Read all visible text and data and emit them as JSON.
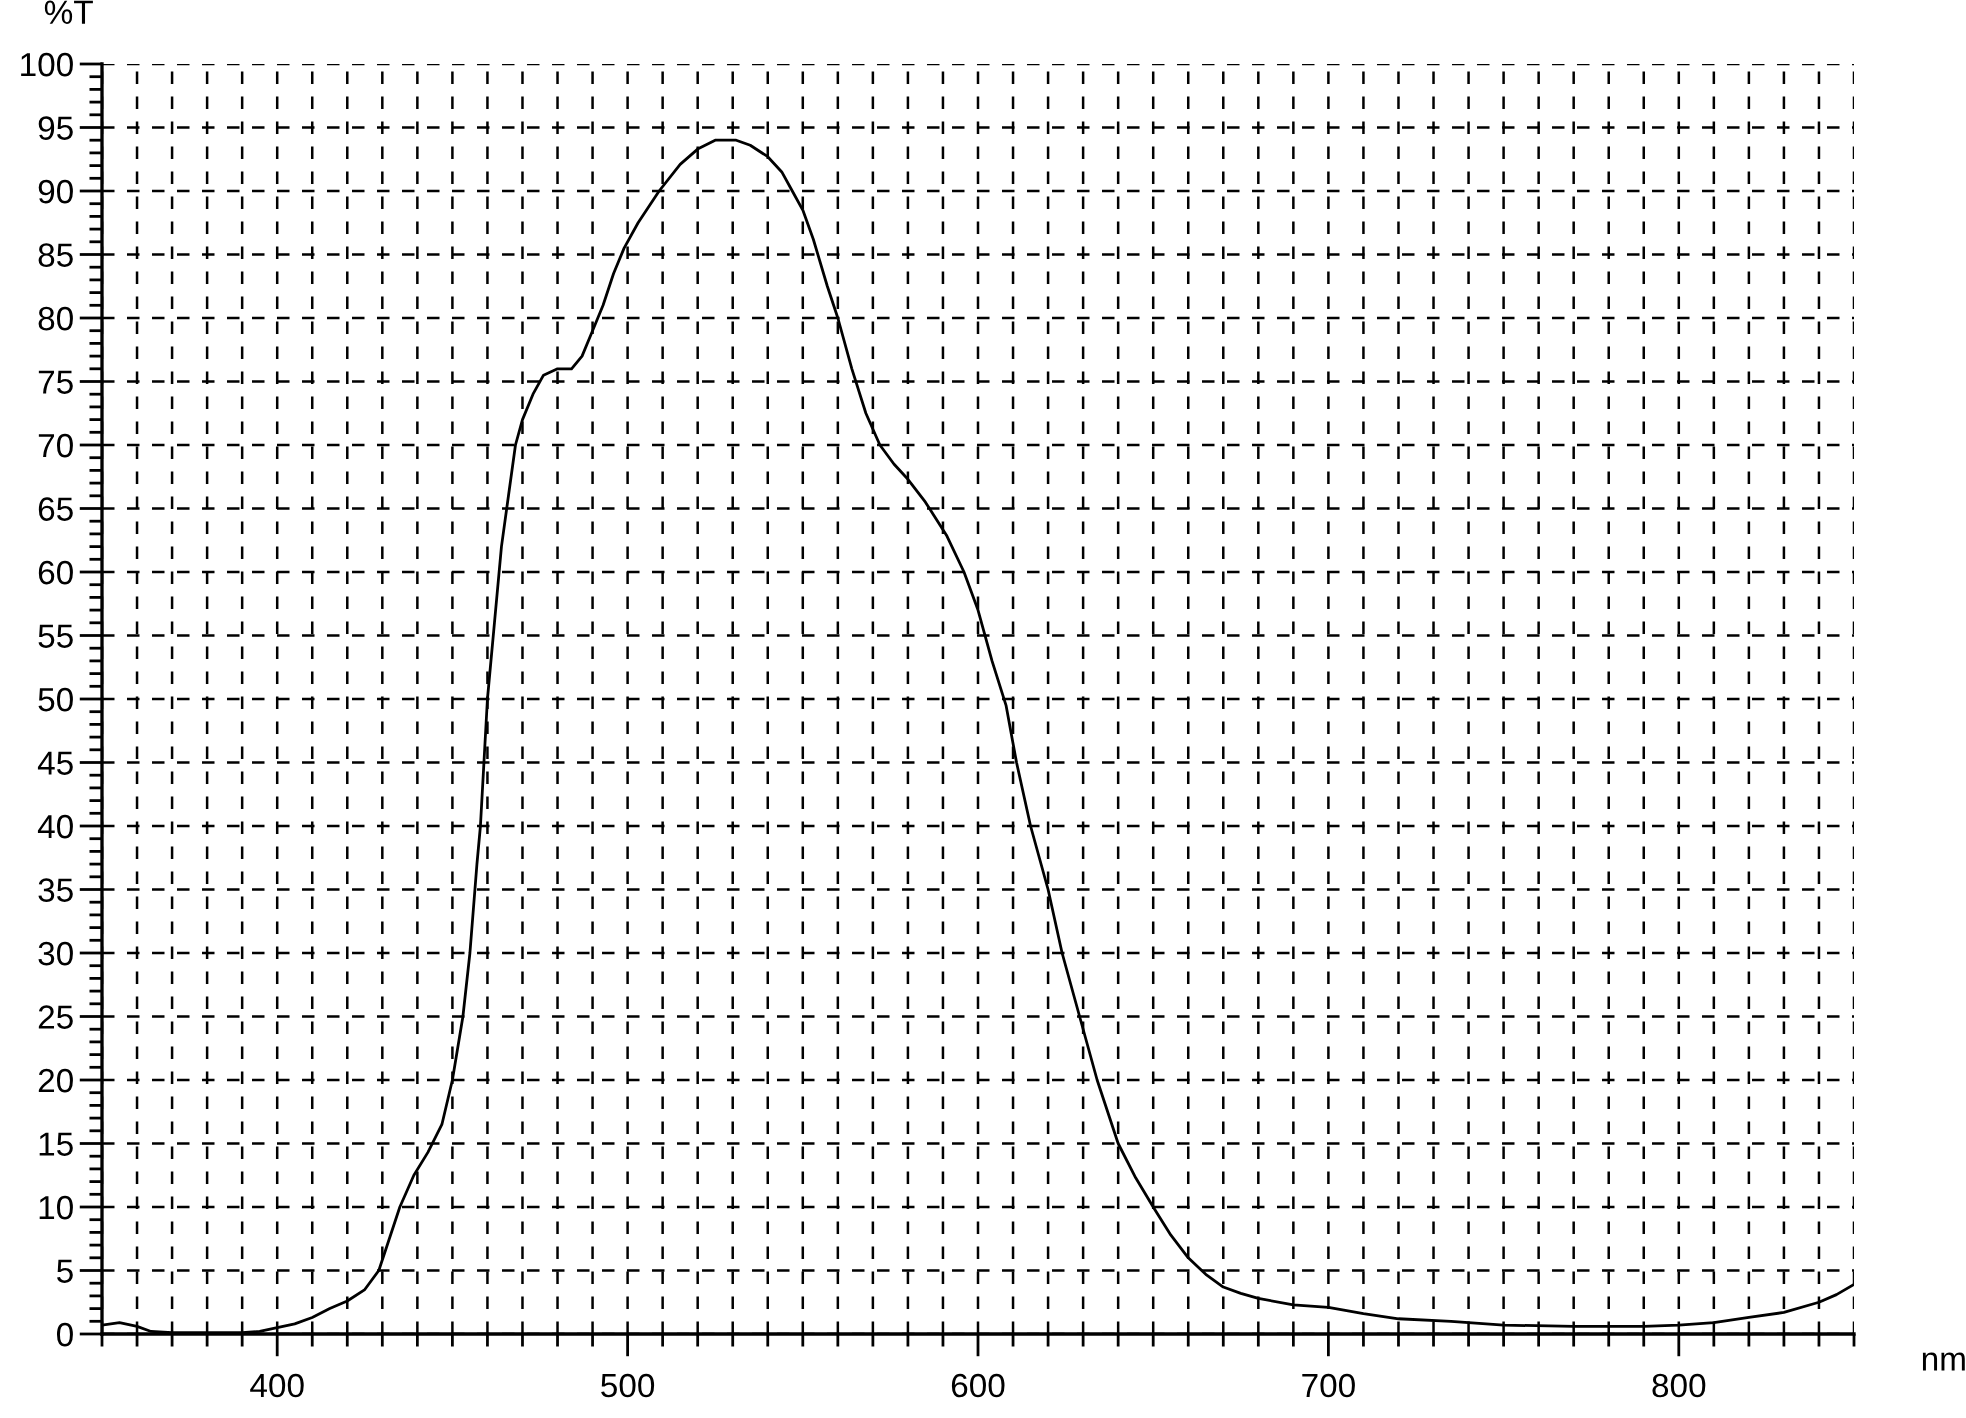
{
  "chart_data": {
    "type": "line",
    "xlabel": "nm",
    "ylabel": "%T",
    "x": [
      350,
      355,
      360,
      364,
      370,
      380,
      390,
      395,
      400,
      405,
      410,
      415,
      420,
      425,
      429,
      432,
      435,
      439,
      443,
      447,
      450,
      453,
      455,
      457,
      458,
      460,
      462,
      464,
      466,
      468,
      470,
      473,
      476,
      480,
      484,
      487,
      490,
      493,
      496,
      499,
      503,
      509,
      515,
      520,
      525,
      531,
      535,
      540,
      544,
      547,
      550,
      553,
      557,
      560,
      564,
      568,
      572,
      576,
      580,
      585,
      591,
      596,
      600,
      604,
      608,
      611,
      615,
      620,
      624,
      629,
      634,
      640,
      645,
      650,
      655,
      660,
      665,
      670,
      675,
      680,
      690,
      700,
      710,
      720,
      735,
      750,
      770,
      790,
      800,
      810,
      820,
      830,
      840,
      845,
      850
    ],
    "series": [
      {
        "color": "#000000",
        "values": [
          0.7,
          0.9,
          0.6,
          0.2,
          0.1,
          0.1,
          0.1,
          0.2,
          0.5,
          0.8,
          1.3,
          2.0,
          2.6,
          3.5,
          5.0,
          7.5,
          10.0,
          12.5,
          14.3,
          16.5,
          20.0,
          25,
          30,
          37,
          40,
          50,
          56,
          62,
          66,
          70,
          72,
          74,
          75.5,
          76.0,
          76.0,
          77,
          79,
          81,
          83.5,
          85.5,
          87.5,
          90.0,
          92.1,
          93.3,
          94.0,
          94.0,
          93.6,
          92.7,
          91.5,
          90.0,
          88.5,
          86.2,
          82.5,
          80,
          76,
          72.5,
          70,
          68.5,
          67.3,
          65.5,
          62.9,
          60.0,
          57,
          53,
          49.5,
          45,
          40,
          35,
          30,
          25,
          20,
          15,
          12.3,
          10,
          7.8,
          6.0,
          4.7,
          3.7,
          3.2,
          2.8,
          2.3,
          2.1,
          1.6,
          1.2,
          1.0,
          0.7,
          0.6,
          0.6,
          0.7,
          0.9,
          1.3,
          1.7,
          2.5,
          3.1,
          3.9
        ]
      }
    ],
    "xlim": [
      350,
      850
    ],
    "ylim": [
      0,
      100
    ],
    "xticks": [
      {
        "value": 350,
        "label": null
      },
      {
        "value": 360,
        "label": null
      },
      {
        "value": 370,
        "label": null
      },
      {
        "value": 380,
        "label": null
      },
      {
        "value": 390,
        "label": null
      },
      400,
      {
        "value": 410,
        "label": null
      },
      {
        "value": 420,
        "label": null
      },
      {
        "value": 430,
        "label": null
      },
      {
        "value": 440,
        "label": null
      },
      {
        "value": 450,
        "label": null
      },
      {
        "value": 460,
        "label": null
      },
      {
        "value": 470,
        "label": null
      },
      {
        "value": 480,
        "label": null
      },
      {
        "value": 490,
        "label": null
      },
      500,
      {
        "value": 510,
        "label": null
      },
      {
        "value": 520,
        "label": null
      },
      {
        "value": 530,
        "label": null
      },
      {
        "value": 540,
        "label": null
      },
      {
        "value": 550,
        "label": null
      },
      {
        "value": 560,
        "label": null
      },
      {
        "value": 570,
        "label": null
      },
      {
        "value": 580,
        "label": null
      },
      {
        "value": 590,
        "label": null
      },
      600,
      {
        "value": 610,
        "label": null
      },
      {
        "value": 620,
        "label": null
      },
      {
        "value": 630,
        "label": null
      },
      {
        "value": 640,
        "label": null
      },
      {
        "value": 650,
        "label": null
      },
      {
        "value": 660,
        "label": null
      },
      {
        "value": 670,
        "label": null
      },
      {
        "value": 680,
        "label": null
      },
      {
        "value": 690,
        "label": null
      },
      700,
      {
        "value": 710,
        "label": null
      },
      {
        "value": 720,
        "label": null
      },
      {
        "value": 730,
        "label": null
      },
      {
        "value": 740,
        "label": null
      },
      {
        "value": 750,
        "label": null
      },
      {
        "value": 760,
        "label": null
      },
      {
        "value": 770,
        "label": null
      },
      {
        "value": 780,
        "label": null
      },
      {
        "value": 790,
        "label": null
      },
      800,
      {
        "value": 810,
        "label": null
      },
      {
        "value": 820,
        "label": null
      },
      {
        "value": 830,
        "label": null
      },
      {
        "value": 840,
        "label": null
      },
      {
        "value": 850,
        "label": null
      }
    ],
    "yticks": [
      0,
      {
        "value": 1,
        "label": null
      },
      {
        "value": 2,
        "label": null
      },
      {
        "value": 3,
        "label": null
      },
      {
        "value": 4,
        "label": null
      },
      5,
      {
        "value": 6,
        "label": null
      },
      {
        "value": 7,
        "label": null
      },
      {
        "value": 8,
        "label": null
      },
      {
        "value": 9,
        "label": null
      },
      10,
      {
        "value": 11,
        "label": null
      },
      {
        "value": 12,
        "label": null
      },
      {
        "value": 13,
        "label": null
      },
      {
        "value": 14,
        "label": null
      },
      15,
      {
        "value": 16,
        "label": null
      },
      {
        "value": 17,
        "label": null
      },
      {
        "value": 18,
        "label": null
      },
      {
        "value": 19,
        "label": null
      },
      20,
      {
        "value": 21,
        "label": null
      },
      {
        "value": 22,
        "label": null
      },
      {
        "value": 23,
        "label": null
      },
      {
        "value": 24,
        "label": null
      },
      25,
      {
        "value": 26,
        "label": null
      },
      {
        "value": 27,
        "label": null
      },
      {
        "value": 28,
        "label": null
      },
      {
        "value": 29,
        "label": null
      },
      30,
      {
        "value": 31,
        "label": null
      },
      {
        "value": 32,
        "label": null
      },
      {
        "value": 33,
        "label": null
      },
      {
        "value": 34,
        "label": null
      },
      35,
      {
        "value": 36,
        "label": null
      },
      {
        "value": 37,
        "label": null
      },
      {
        "value": 38,
        "label": null
      },
      {
        "value": 39,
        "label": null
      },
      40,
      {
        "value": 41,
        "label": null
      },
      {
        "value": 42,
        "label": null
      },
      {
        "value": 43,
        "label": null
      },
      {
        "value": 44,
        "label": null
      },
      45,
      {
        "value": 46,
        "label": null
      },
      {
        "value": 47,
        "label": null
      },
      {
        "value": 48,
        "label": null
      },
      {
        "value": 49,
        "label": null
      },
      50,
      {
        "value": 51,
        "label": null
      },
      {
        "value": 52,
        "label": null
      },
      {
        "value": 53,
        "label": null
      },
      {
        "value": 54,
        "label": null
      },
      55,
      {
        "value": 56,
        "label": null
      },
      {
        "value": 57,
        "label": null
      },
      {
        "value": 58,
        "label": null
      },
      {
        "value": 59,
        "label": null
      },
      60,
      {
        "value": 61,
        "label": null
      },
      {
        "value": 62,
        "label": null
      },
      {
        "value": 63,
        "label": null
      },
      {
        "value": 64,
        "label": null
      },
      65,
      {
        "value": 66,
        "label": null
      },
      {
        "value": 67,
        "label": null
      },
      {
        "value": 68,
        "label": null
      },
      {
        "value": 69,
        "label": null
      },
      70,
      {
        "value": 71,
        "label": null
      },
      {
        "value": 72,
        "label": null
      },
      {
        "value": 73,
        "label": null
      },
      {
        "value": 74,
        "label": null
      },
      75,
      {
        "value": 76,
        "label": null
      },
      {
        "value": 77,
        "label": null
      },
      {
        "value": 78,
        "label": null
      },
      {
        "value": 79,
        "label": null
      },
      80,
      {
        "value": 81,
        "label": null
      },
      {
        "value": 82,
        "label": null
      },
      {
        "value": 83,
        "label": null
      },
      {
        "value": 84,
        "label": null
      },
      85,
      {
        "value": 86,
        "label": null
      },
      {
        "value": 87,
        "label": null
      },
      {
        "value": 88,
        "label": null
      },
      {
        "value": 89,
        "label": null
      },
      90,
      {
        "value": 91,
        "label": null
      },
      {
        "value": 92,
        "label": null
      },
      {
        "value": 93,
        "label": null
      },
      {
        "value": 94,
        "label": null
      },
      95,
      {
        "value": 96,
        "label": null
      },
      {
        "value": 97,
        "label": null
      },
      {
        "value": 98,
        "label": null
      },
      {
        "value": 99,
        "label": null
      },
      100
    ],
    "grid": true,
    "line_style": "solid"
  }
}
